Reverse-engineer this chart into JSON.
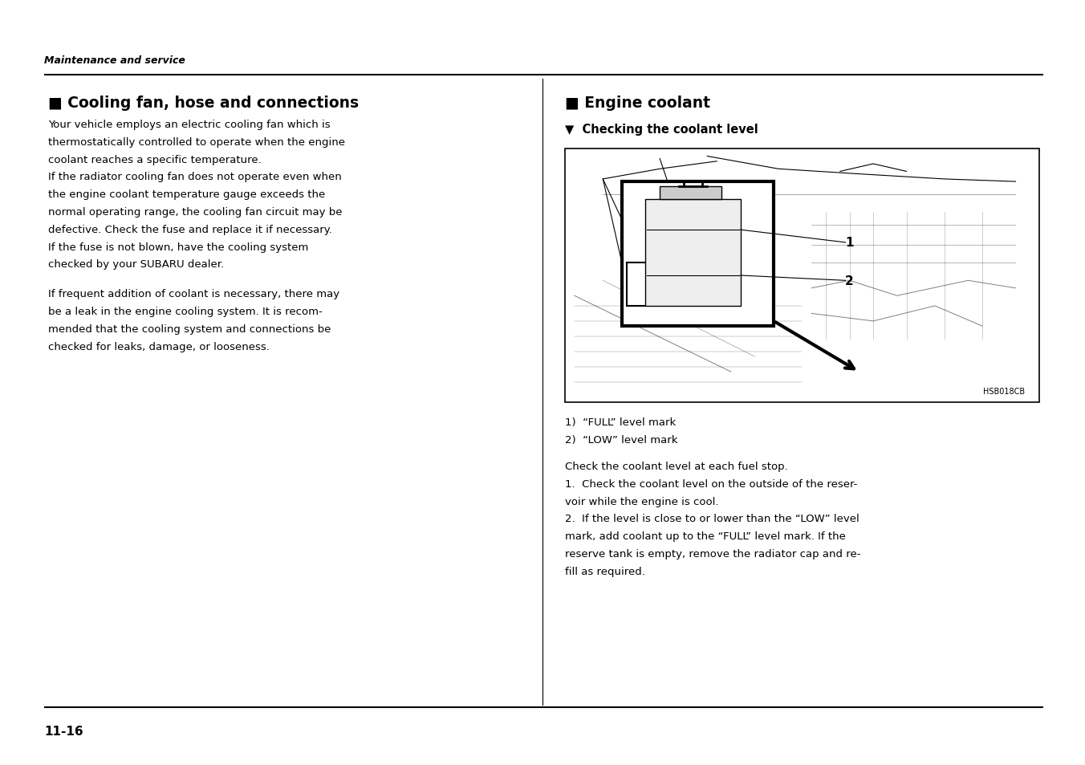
{
  "bg_color": "#ffffff",
  "page_width": 13.52,
  "page_height": 9.54,
  "header_italic": "Maintenance and service",
  "footer_text": "11-16",
  "left_title": "■ Cooling fan, hose and connections",
  "left_body1_lines": [
    "Your vehicle employs an electric cooling fan which is",
    "thermostatically controlled to operate when the engine",
    "coolant reaches a specific temperature.",
    "If the radiator cooling fan does not operate even when",
    "the engine coolant temperature gauge exceeds the",
    "normal operating range, the cooling fan circuit may be",
    "defective. Check the fuse and replace it if necessary.",
    "If the fuse is not blown, have the cooling system",
    "checked by your SUBARU dealer."
  ],
  "left_body2_lines": [
    "If frequent addition of coolant is necessary, there may",
    "be a leak in the engine cooling system. It is recom-",
    "mended that the cooling system and connections be",
    "checked for leaks, damage, or looseness."
  ],
  "right_title": "■ Engine coolant",
  "sub_title": "▼  Checking the coolant level",
  "image_note": "HSB018CB",
  "caption1": "1)  “FULL” level mark",
  "caption2": "2)  “LOW” level mark",
  "right_body_lines": [
    "Check the coolant level at each fuel stop.",
    "1.  Check the coolant level on the outside of the reser-",
    "voir while the engine is cool.",
    "2.  If the level is close to or lower than the “LOW” level",
    "mark, add coolant up to the “FULL” level mark. If the",
    "reserve tank is empty, remove the radiator cap and re-",
    "fill as required."
  ]
}
